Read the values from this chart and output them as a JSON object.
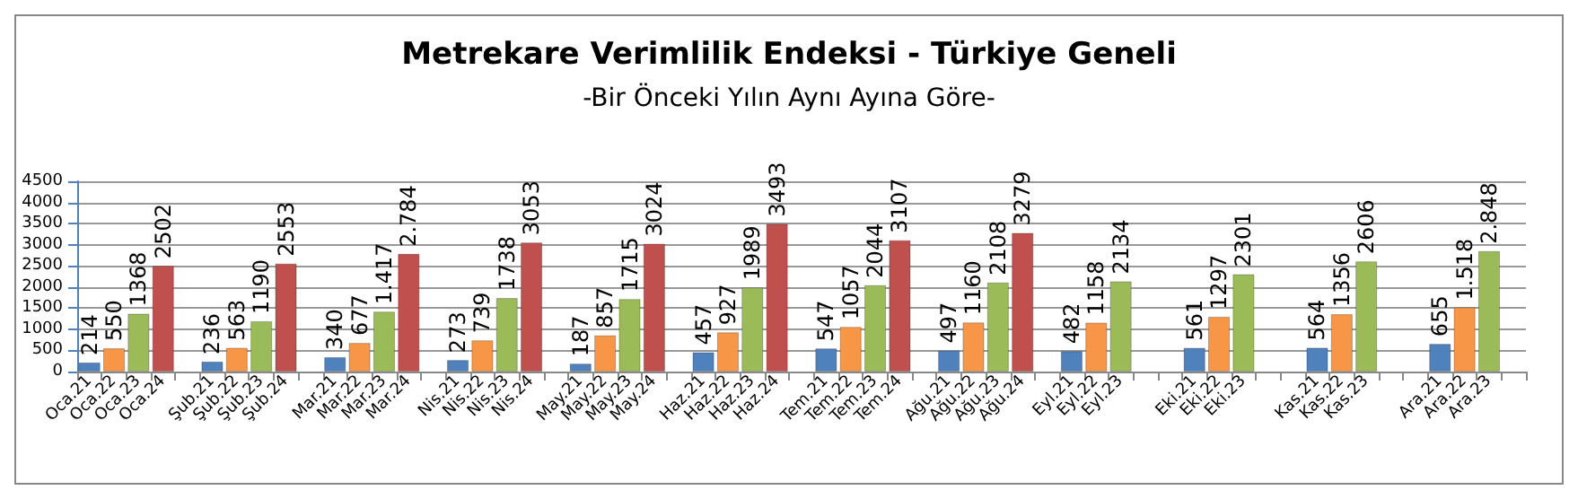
{
  "chart_data": {
    "type": "bar",
    "title": "Metrekare Verimlilik Endeksi - Türkiye Geneli",
    "subtitle": "-Bir Önceki Yılın Aynı Ayına Göre-",
    "categories": [
      "Oca.21",
      "Oca.22",
      "Oca.23",
      "Oca.24",
      null,
      "Şub.21",
      "Şub.22",
      "Şub.23",
      "Şub.24",
      null,
      "Mar.21",
      "Mar.22",
      "Mar.23",
      "Mar.24",
      null,
      "Nis.21",
      "Nis.22",
      "Nis.23",
      "Nis.24",
      null,
      "May.21",
      "May.22",
      "May.23",
      "May.24",
      null,
      "Haz.21",
      "Haz.22",
      "Haz.23",
      "Haz.24",
      null,
      "Tem.21",
      "Tem.22",
      "Tem.23",
      "Tem.24",
      null,
      "Ağu.21",
      "Ağu.22",
      "Ağu.23",
      "Ağu.24",
      null,
      "Eyl.21",
      "Eyl.22",
      "Eyl.23",
      null,
      null,
      "Eki.21",
      "Eki.22",
      "Eki.23",
      null,
      null,
      "Kas.21",
      "Kas.22",
      "Kas.23",
      null,
      null,
      "Ara.21",
      "Ara.22",
      "Ara.23",
      null
    ],
    "values": [
      214,
      550,
      1368,
      2502,
      null,
      236,
      563,
      1190,
      2553,
      null,
      340,
      677,
      1417,
      2784,
      null,
      273,
      739,
      1738,
      3053,
      null,
      187,
      857,
      1715,
      3024,
      null,
      457,
      927,
      1989,
      3493,
      null,
      547,
      1057,
      2044,
      3107,
      null,
      497,
      1160,
      2108,
      3279,
      null,
      482,
      1158,
      2134,
      null,
      null,
      561,
      1297,
      2301,
      null,
      null,
      564,
      1356,
      2606,
      null,
      null,
      655,
      1518,
      2848,
      null
    ],
    "value_labels": [
      "214",
      "550",
      "1368",
      "2502",
      null,
      "236",
      "563",
      "1190",
      "2553",
      null,
      "340",
      "677",
      "1.417",
      "2.784",
      null,
      "273",
      "739",
      "1738",
      "3053",
      null,
      "187",
      "857",
      "1715",
      "3024",
      null,
      "457",
      "927",
      "1989",
      "3493",
      null,
      "547",
      "1057",
      "2044",
      "3107",
      null,
      "497",
      "1160",
      "2108",
      "3279",
      null,
      "482",
      "1158",
      "2134",
      null,
      null,
      "561",
      "1297",
      "2301",
      null,
      null,
      "564",
      "1356",
      "2606",
      null,
      null,
      "655",
      "1.518",
      "2.848",
      null
    ],
    "colors": [
      "#4f81bd",
      "#f79646",
      "#9bbb59",
      "#c0504d",
      null,
      "#4f81bd",
      "#f79646",
      "#9bbb59",
      "#c0504d",
      null,
      "#4f81bd",
      "#f79646",
      "#9bbb59",
      "#c0504d",
      null,
      "#4f81bd",
      "#f79646",
      "#9bbb59",
      "#c0504d",
      null,
      "#4f81bd",
      "#f79646",
      "#9bbb59",
      "#c0504d",
      null,
      "#4f81bd",
      "#f79646",
      "#9bbb59",
      "#c0504d",
      null,
      "#4f81bd",
      "#f79646",
      "#9bbb59",
      "#c0504d",
      null,
      "#4f81bd",
      "#f79646",
      "#9bbb59",
      "#c0504d",
      null,
      "#4f81bd",
      "#f79646",
      "#9bbb59",
      null,
      null,
      "#4f81bd",
      "#f79646",
      "#9bbb59",
      null,
      null,
      "#4f81bd",
      "#f79646",
      "#9bbb59",
      null,
      null,
      "#4f81bd",
      "#f79646",
      "#9bbb59",
      null
    ],
    "ylim": [
      0,
      4500
    ],
    "yticks": [
      0,
      500,
      1000,
      1500,
      2000,
      2500,
      3000,
      3500,
      4000,
      4500
    ],
    "grid": "y"
  }
}
